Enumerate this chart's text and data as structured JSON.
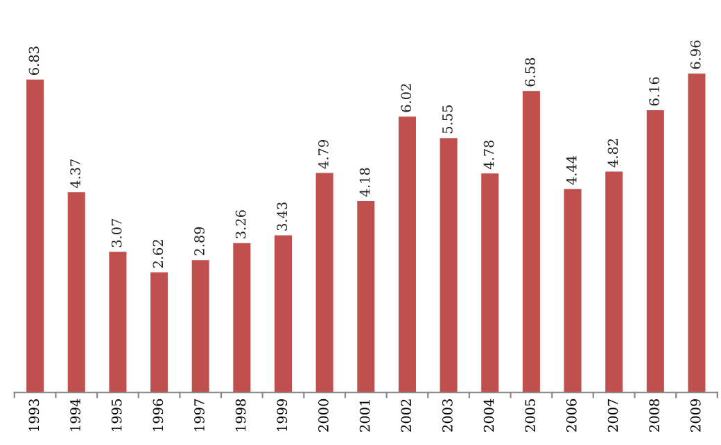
{
  "chart_data": {
    "type": "bar",
    "categories": [
      "1993",
      "1994",
      "1995",
      "1996",
      "1997",
      "1998",
      "1999",
      "2000",
      "2001",
      "2002",
      "2003",
      "2004",
      "2005",
      "2006",
      "2007",
      "2008",
      "2009"
    ],
    "values": [
      6.83,
      4.37,
      3.07,
      2.62,
      2.89,
      3.26,
      3.43,
      4.79,
      4.18,
      6.02,
      5.55,
      4.78,
      6.58,
      4.44,
      4.82,
      6.16,
      6.96
    ],
    "color": "#c0504d",
    "data_labels": true,
    "grid": false,
    "legend": false
  }
}
